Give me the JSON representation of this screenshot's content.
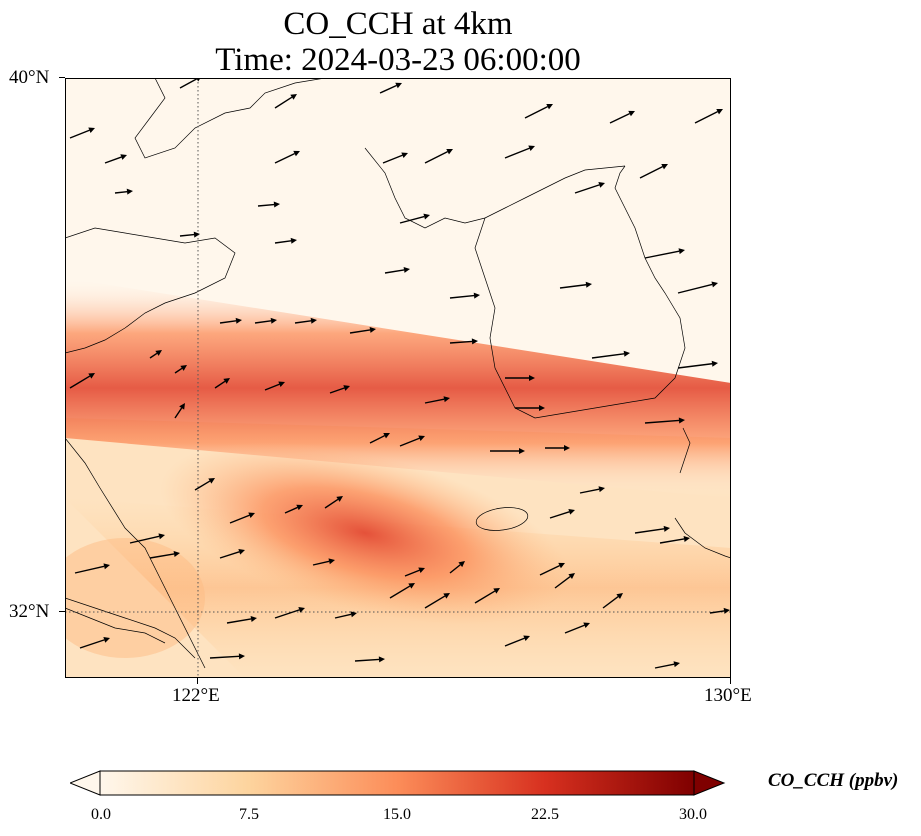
{
  "title": {
    "line1": "CO_CCH at 4km",
    "line2": "Time: 2024-03-23 06:00:00"
  },
  "map": {
    "projection": "PlateCarree",
    "lon_range": [
      120.2,
      130.0
    ],
    "lat_range": [
      31.1,
      40.0
    ],
    "lat_ticks": [
      "40°N",
      "32°N"
    ],
    "lon_ticks": [
      "122°E",
      "130°E"
    ],
    "gridlines": "dotted at 122°E and 32°N",
    "field": "CO_CCH",
    "level": "4km",
    "plume_description_units": "ppbv",
    "wind_vectors": "westerly to west-south-westerly quiver arrows"
  },
  "colorbar": {
    "label": "CO_CCH (ppbv)",
    "ticks": [
      "0.0",
      "7.5",
      "15.0",
      "22.5",
      "30.0"
    ],
    "min": 0.0,
    "max": 30.0,
    "colormap": "OrRd",
    "extend": "both"
  },
  "colors": {
    "low": "#fff7ec",
    "mid": "#fdbb84",
    "high": "#ef6548",
    "max": "#7f0000",
    "coast": "#000000"
  }
}
